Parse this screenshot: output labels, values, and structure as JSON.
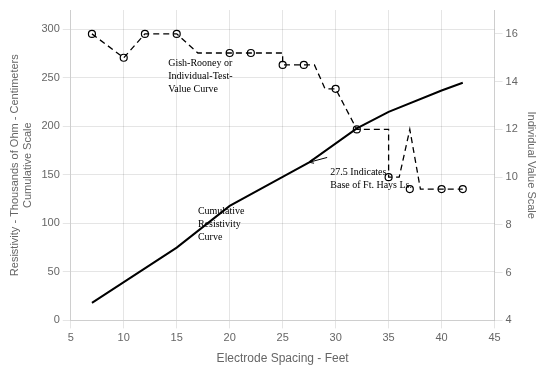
{
  "chart_data": {
    "type": "line",
    "xlabel": "Electrode Spacing - Feet",
    "ylabel": [
      "Resistivity - Thousands of Ohm - Centimeters",
      "Cumulative Scale"
    ],
    "y2label": "Individual Value Scale",
    "xlim": [
      5,
      45
    ],
    "xticks": [
      5,
      10,
      15,
      20,
      25,
      30,
      35,
      40,
      45
    ],
    "ylim": [
      0,
      320
    ],
    "yticks": [
      0,
      50,
      100,
      150,
      200,
      250,
      300
    ],
    "y2lim": [
      4,
      17
    ],
    "y2ticks": [
      4,
      6,
      8,
      10,
      12,
      14,
      16
    ],
    "grid": true,
    "series": [
      {
        "x": [
          7,
          15,
          20,
          25,
          27.5,
          32,
          35,
          40,
          42
        ],
        "values": [
          18,
          75,
          118,
          148,
          163,
          198,
          215,
          237,
          245
        ],
        "color": "#000000",
        "line_style": "solid",
        "marker": "none"
      },
      {
        "x": [
          7,
          10,
          10,
          12,
          15,
          17,
          20,
          25,
          25,
          27,
          28,
          29,
          30,
          30,
          32,
          33,
          34,
          35,
          35,
          36,
          37,
          38,
          39,
          40,
          42
        ],
        "values": [
          16.0,
          15.0,
          15.0,
          16.0,
          16.0,
          15.2,
          15.2,
          15.2,
          14.7,
          14.7,
          14.7,
          13.7,
          13.7,
          13.7,
          12.0,
          12.0,
          12.0,
          12.0,
          10.0,
          10.0,
          12.0,
          9.5,
          9.5,
          9.5,
          9.5
        ],
        "axis": "y2",
        "color": "#000000",
        "line_style": "dashed",
        "marker": "none"
      },
      {
        "x": [
          7,
          10,
          12,
          15,
          20,
          22,
          25,
          27,
          30,
          32,
          35,
          37,
          40,
          42
        ],
        "values": [
          16.0,
          15.0,
          16.0,
          16.0,
          15.2,
          15.2,
          14.7,
          14.7,
          13.7,
          12.0,
          10.0,
          9.5,
          9.5,
          9.5
        ],
        "axis": "y2",
        "color": "#000000",
        "line_style": "none",
        "marker": "circle"
      }
    ],
    "annotations": [
      {
        "text": "Gish-Rooney or\nIndividual-Test-\nValue Curve",
        "x": 14.2,
        "y": 270
      },
      {
        "text": "Cumulative\nResistivity\nCurve",
        "x": 17.0,
        "y": 118
      },
      {
        "text": "27.5 Indicates\nBase of Ft. Hays Ls.",
        "x": 29.5,
        "y": 158,
        "arrow_from": {
          "x": 29.2,
          "y": 168
        },
        "arrow_to": {
          "x": 27.5,
          "y": 163
        }
      }
    ]
  }
}
